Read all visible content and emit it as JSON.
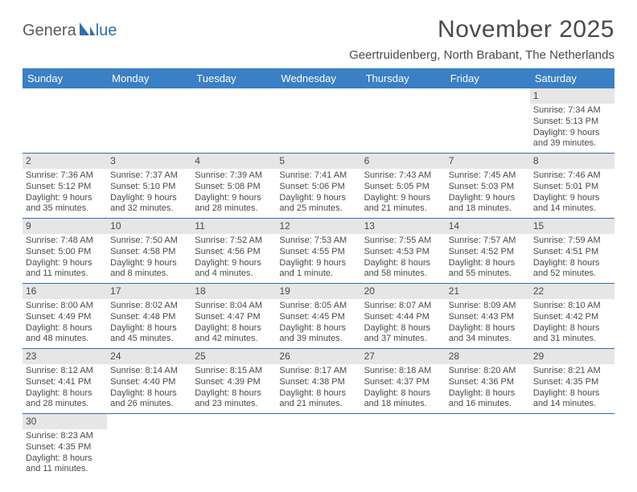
{
  "logo": {
    "part1": "Genera",
    "part2": "lue"
  },
  "header": {
    "month_title": "November 2025",
    "location": "Geertruidenberg, North Brabant, The Netherlands"
  },
  "weekdays": [
    "Sunday",
    "Monday",
    "Tuesday",
    "Wednesday",
    "Thursday",
    "Friday",
    "Saturday"
  ],
  "colors": {
    "header_bg": "#3b7fc4",
    "header_text": "#ffffff",
    "rule": "#2f6fa8",
    "daynum_bg": "#e6e6e6",
    "body_text": "#4a4a4a",
    "logo_blue": "#2f6fa8"
  },
  "first_weekday_index": 6,
  "days": [
    {
      "n": "1",
      "sunrise": "Sunrise: 7:34 AM",
      "sunset": "Sunset: 5:13 PM",
      "daylight": "Daylight: 9 hours and 39 minutes."
    },
    {
      "n": "2",
      "sunrise": "Sunrise: 7:36 AM",
      "sunset": "Sunset: 5:12 PM",
      "daylight": "Daylight: 9 hours and 35 minutes."
    },
    {
      "n": "3",
      "sunrise": "Sunrise: 7:37 AM",
      "sunset": "Sunset: 5:10 PM",
      "daylight": "Daylight: 9 hours and 32 minutes."
    },
    {
      "n": "4",
      "sunrise": "Sunrise: 7:39 AM",
      "sunset": "Sunset: 5:08 PM",
      "daylight": "Daylight: 9 hours and 28 minutes."
    },
    {
      "n": "5",
      "sunrise": "Sunrise: 7:41 AM",
      "sunset": "Sunset: 5:06 PM",
      "daylight": "Daylight: 9 hours and 25 minutes."
    },
    {
      "n": "6",
      "sunrise": "Sunrise: 7:43 AM",
      "sunset": "Sunset: 5:05 PM",
      "daylight": "Daylight: 9 hours and 21 minutes."
    },
    {
      "n": "7",
      "sunrise": "Sunrise: 7:45 AM",
      "sunset": "Sunset: 5:03 PM",
      "daylight": "Daylight: 9 hours and 18 minutes."
    },
    {
      "n": "8",
      "sunrise": "Sunrise: 7:46 AM",
      "sunset": "Sunset: 5:01 PM",
      "daylight": "Daylight: 9 hours and 14 minutes."
    },
    {
      "n": "9",
      "sunrise": "Sunrise: 7:48 AM",
      "sunset": "Sunset: 5:00 PM",
      "daylight": "Daylight: 9 hours and 11 minutes."
    },
    {
      "n": "10",
      "sunrise": "Sunrise: 7:50 AM",
      "sunset": "Sunset: 4:58 PM",
      "daylight": "Daylight: 9 hours and 8 minutes."
    },
    {
      "n": "11",
      "sunrise": "Sunrise: 7:52 AM",
      "sunset": "Sunset: 4:56 PM",
      "daylight": "Daylight: 9 hours and 4 minutes."
    },
    {
      "n": "12",
      "sunrise": "Sunrise: 7:53 AM",
      "sunset": "Sunset: 4:55 PM",
      "daylight": "Daylight: 9 hours and 1 minute."
    },
    {
      "n": "13",
      "sunrise": "Sunrise: 7:55 AM",
      "sunset": "Sunset: 4:53 PM",
      "daylight": "Daylight: 8 hours and 58 minutes."
    },
    {
      "n": "14",
      "sunrise": "Sunrise: 7:57 AM",
      "sunset": "Sunset: 4:52 PM",
      "daylight": "Daylight: 8 hours and 55 minutes."
    },
    {
      "n": "15",
      "sunrise": "Sunrise: 7:59 AM",
      "sunset": "Sunset: 4:51 PM",
      "daylight": "Daylight: 8 hours and 52 minutes."
    },
    {
      "n": "16",
      "sunrise": "Sunrise: 8:00 AM",
      "sunset": "Sunset: 4:49 PM",
      "daylight": "Daylight: 8 hours and 48 minutes."
    },
    {
      "n": "17",
      "sunrise": "Sunrise: 8:02 AM",
      "sunset": "Sunset: 4:48 PM",
      "daylight": "Daylight: 8 hours and 45 minutes."
    },
    {
      "n": "18",
      "sunrise": "Sunrise: 8:04 AM",
      "sunset": "Sunset: 4:47 PM",
      "daylight": "Daylight: 8 hours and 42 minutes."
    },
    {
      "n": "19",
      "sunrise": "Sunrise: 8:05 AM",
      "sunset": "Sunset: 4:45 PM",
      "daylight": "Daylight: 8 hours and 39 minutes."
    },
    {
      "n": "20",
      "sunrise": "Sunrise: 8:07 AM",
      "sunset": "Sunset: 4:44 PM",
      "daylight": "Daylight: 8 hours and 37 minutes."
    },
    {
      "n": "21",
      "sunrise": "Sunrise: 8:09 AM",
      "sunset": "Sunset: 4:43 PM",
      "daylight": "Daylight: 8 hours and 34 minutes."
    },
    {
      "n": "22",
      "sunrise": "Sunrise: 8:10 AM",
      "sunset": "Sunset: 4:42 PM",
      "daylight": "Daylight: 8 hours and 31 minutes."
    },
    {
      "n": "23",
      "sunrise": "Sunrise: 8:12 AM",
      "sunset": "Sunset: 4:41 PM",
      "daylight": "Daylight: 8 hours and 28 minutes."
    },
    {
      "n": "24",
      "sunrise": "Sunrise: 8:14 AM",
      "sunset": "Sunset: 4:40 PM",
      "daylight": "Daylight: 8 hours and 26 minutes."
    },
    {
      "n": "25",
      "sunrise": "Sunrise: 8:15 AM",
      "sunset": "Sunset: 4:39 PM",
      "daylight": "Daylight: 8 hours and 23 minutes."
    },
    {
      "n": "26",
      "sunrise": "Sunrise: 8:17 AM",
      "sunset": "Sunset: 4:38 PM",
      "daylight": "Daylight: 8 hours and 21 minutes."
    },
    {
      "n": "27",
      "sunrise": "Sunrise: 8:18 AM",
      "sunset": "Sunset: 4:37 PM",
      "daylight": "Daylight: 8 hours and 18 minutes."
    },
    {
      "n": "28",
      "sunrise": "Sunrise: 8:20 AM",
      "sunset": "Sunset: 4:36 PM",
      "daylight": "Daylight: 8 hours and 16 minutes."
    },
    {
      "n": "29",
      "sunrise": "Sunrise: 8:21 AM",
      "sunset": "Sunset: 4:35 PM",
      "daylight": "Daylight: 8 hours and 14 minutes."
    },
    {
      "n": "30",
      "sunrise": "Sunrise: 8:23 AM",
      "sunset": "Sunset: 4:35 PM",
      "daylight": "Daylight: 8 hours and 11 minutes."
    }
  ]
}
